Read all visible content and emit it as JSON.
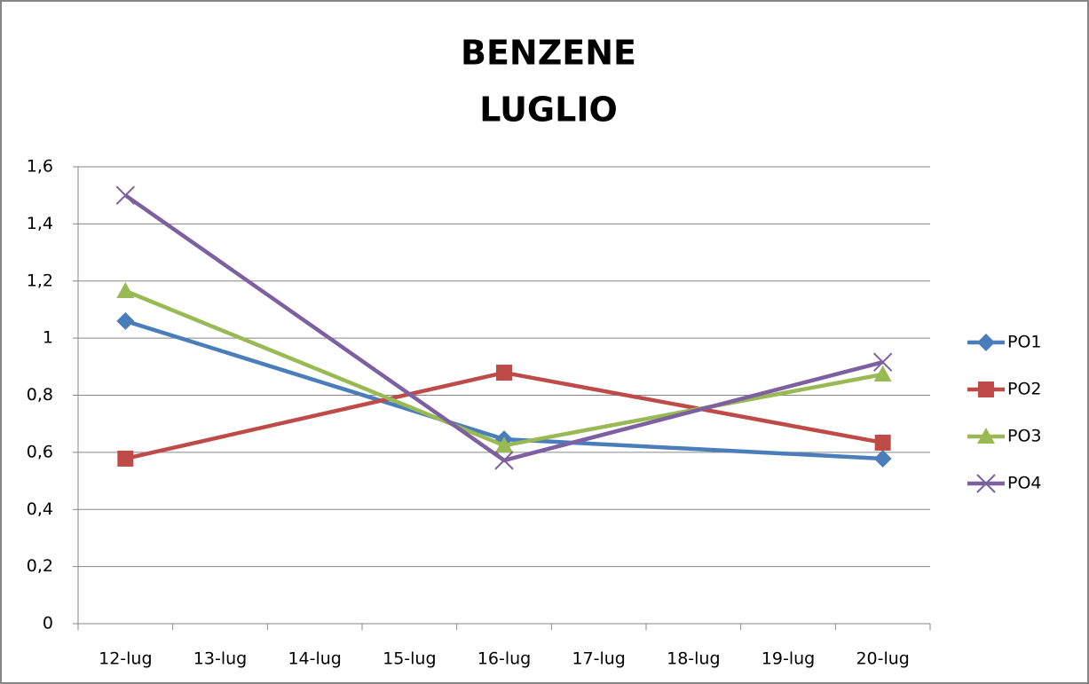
{
  "chart_data": {
    "type": "line",
    "title": [
      "BENZENE",
      "LUGLIO"
    ],
    "x": [
      12,
      16,
      20
    ],
    "xlim": [
      11.5,
      20.5
    ],
    "xticks": [
      {
        "value": 12,
        "label": "12-lug"
      },
      {
        "value": 13,
        "label": "13-lug"
      },
      {
        "value": 14,
        "label": "14-lug"
      },
      {
        "value": 15,
        "label": "15-lug"
      },
      {
        "value": 16,
        "label": "16-lug"
      },
      {
        "value": 17,
        "label": "17-lug"
      },
      {
        "value": 18,
        "label": "18-lug"
      },
      {
        "value": 19,
        "label": "19-lug"
      },
      {
        "value": 20,
        "label": "20-lug"
      }
    ],
    "ylim": [
      0,
      1.6
    ],
    "yticks": [
      0,
      {
        "value": 0.2,
        "label": "0,2"
      },
      {
        "value": 0.4,
        "label": "0,4"
      },
      {
        "value": 0.6,
        "label": "0,6"
      },
      {
        "value": 0.8,
        "label": "0,8"
      },
      1,
      {
        "value": 1.2,
        "label": "1,2"
      },
      {
        "value": 1.4,
        "label": "1,4"
      },
      {
        "value": 1.6,
        "label": "1,6"
      }
    ],
    "grid": true,
    "legend": "right",
    "series": [
      {
        "name": "PO1",
        "color": "#4a7ebb",
        "marker": "diamond",
        "values": [
          1.06,
          0.646,
          0.578
        ]
      },
      {
        "name": "PO2",
        "color": "#be4b48",
        "marker": "square",
        "values": [
          0.578,
          0.879,
          0.634
        ]
      },
      {
        "name": "PO3",
        "color": "#98b954",
        "marker": "triangle",
        "values": [
          1.165,
          0.624,
          0.873
        ]
      },
      {
        "name": "PO4",
        "color": "#7d60a0",
        "marker": "x",
        "values": [
          1.5,
          0.572,
          0.916
        ]
      }
    ]
  }
}
